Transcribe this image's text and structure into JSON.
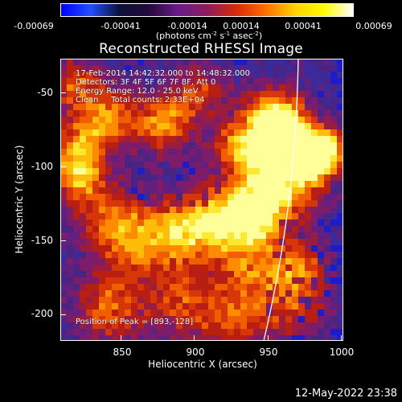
{
  "colorbar": {
    "stops": [
      "#0000ff",
      "#2050ff",
      "#0c1038",
      "#24093d",
      "#6a1a8b",
      "#8c1d5a",
      "#d8280a",
      "#ff6d00",
      "#ffd000",
      "#fffb00",
      "#ffffff"
    ],
    "tick_labels": [
      "-0.00069",
      "-0.00041",
      "-0.00014",
      "0.00014",
      "0.00041",
      "0.00069"
    ],
    "units_prefix": "(photons cm",
    "units_exp1": "-2",
    "units_mid1": " s",
    "units_exp2": "-1",
    "units_mid2": " asec",
    "units_exp3": "-2",
    "units_suffix": ")"
  },
  "plot": {
    "title": "Reconstructed RHESSI Image",
    "annotation_lines": [
      "17-Feb-2014 14:42:32.000 to 14:48:32.000",
      "Detectors: 3F 4F 5F 6F 7F 8F, Att 0",
      "Energy Range: 12.0 - 25.0 keV",
      "Clean     Total counts: 2.33E+04"
    ],
    "peak_label": "Position of Peak = [893,-128]",
    "x_axis": {
      "title": "Heliocentric X (arcsec)",
      "ticks": [
        850,
        900,
        950,
        1000
      ],
      "range": [
        810,
        1000
      ]
    },
    "y_axis": {
      "title": "Heliocentric Y (arcsec)",
      "ticks": [
        -50,
        -100,
        -150,
        -200
      ],
      "range": [
        -220,
        -30
      ]
    },
    "limb_color": "#ffffff"
  },
  "timestamp": "12-May-2022 23:38"
}
